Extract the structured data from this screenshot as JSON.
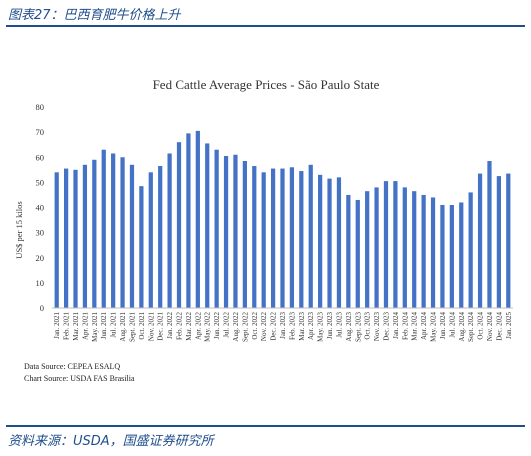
{
  "figure": {
    "title": "图表27：巴西育肥牛价格上升",
    "source": "资料来源：USDA，国盛证券研究所"
  },
  "notes": {
    "data_source": "Data Source: CEPEA ESALQ",
    "chart_source": "Chart Source: USDA FAS Brasilia"
  },
  "colors": {
    "bar": "#4472c4",
    "brand": "#1f4e8c",
    "grid": "#d9d9d9"
  },
  "chart_data": {
    "type": "bar",
    "title": "Fed Cattle Average Prices - São Paulo State",
    "xlabel": "",
    "ylabel": "US$ per 15 kilos",
    "ylim": [
      0,
      80
    ],
    "yticks": [
      0,
      10,
      20,
      30,
      40,
      50,
      60,
      70,
      80
    ],
    "grid": false,
    "legend": "none",
    "categories": [
      "Jan. 2021",
      "Feb. 2021",
      "Mar. 2021",
      "Apr. 2021",
      "May. 2021",
      "Jun. 2021",
      "Jul. 2021",
      "Aug. 2021",
      "Sept. 2021",
      "Oct. 2021",
      "Nov. 2021",
      "Dec. 2021",
      "Jan. 2022",
      "Feb. 2022",
      "Mar. 2022",
      "Apr. 2022",
      "May. 2022",
      "Jun. 2022",
      "Jul. 2022",
      "Aug. 2022",
      "Sept. 2022",
      "Oct. 2022",
      "Nov. 2022",
      "Dec. 2022",
      "Jan. 2023",
      "Feb. 2023",
      "Mar. 2023",
      "Apr. 2023",
      "May. 2023",
      "Jun. 2023",
      "Jul. 2023",
      "Aug. 2023",
      "Sept. 2023",
      "Oct. 2023",
      "Nov. 2023",
      "Dec. 2023",
      "Jan. 2024",
      "Feb. 2024",
      "Mar. 2024",
      "Apr. 2024",
      "May. 2024",
      "Jun. 2024",
      "Jul. 2024",
      "Aug. 2024",
      "Sept. 2024",
      "Oct. 2024",
      "Nov. 2024",
      "Dec. 2024",
      "Jan. 2025"
    ],
    "values": [
      54,
      55.5,
      55,
      57,
      59,
      63,
      61.5,
      60,
      57,
      48.5,
      54,
      56.5,
      61.5,
      66,
      69.5,
      70.5,
      65.5,
      63,
      60.5,
      61,
      58.5,
      56.5,
      54,
      55.5,
      55.5,
      56,
      54.5,
      57,
      53,
      51.5,
      52,
      45,
      43,
      46.5,
      48,
      50.5,
      50.5,
      48,
      46.5,
      45,
      44,
      41,
      41,
      42,
      46,
      53.5,
      58.5,
      52.5,
      53.5
    ]
  }
}
